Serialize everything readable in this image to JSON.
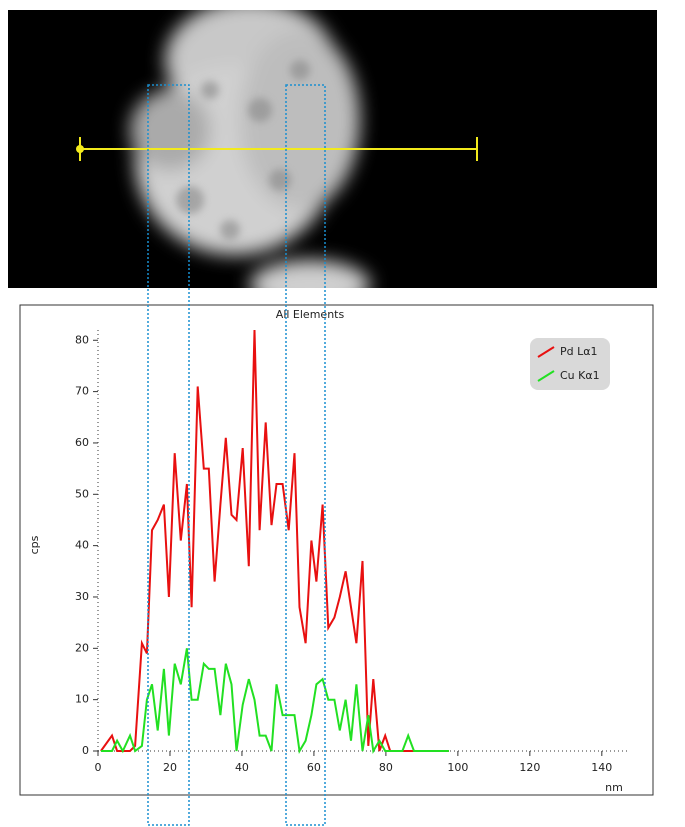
{
  "chart_data": {
    "type": "line",
    "title": "All Elements",
    "x_label": "nm",
    "y_label": "cps",
    "x": [
      0.8,
      3.9,
      5.3,
      6.9,
      8.9,
      10.3,
      12.2,
      13.6,
      15,
      16.6,
      18.3,
      19.7,
      21.3,
      23,
      24.7,
      26,
      27.7,
      29.4,
      30.8,
      32.4,
      34,
      35.5,
      37.1,
      38.5,
      40.2,
      41.9,
      43.5,
      44.9,
      46.6,
      48.2,
      49.6,
      51.3,
      53,
      54.6,
      56,
      57.7,
      59.3,
      60.7,
      62.4,
      64,
      65.7,
      67.2,
      68.8,
      70.3,
      71.8,
      73.5,
      75.1,
      76.5,
      78.2,
      79.8,
      81.2,
      83,
      84.6,
      86.2,
      87.8,
      89.4,
      91,
      93,
      95,
      97.5
    ],
    "series": [
      {
        "name": "Pd Lα1",
        "color": "#e81010",
        "values": [
          0,
          3,
          0,
          0,
          0,
          1,
          21,
          19,
          43,
          45,
          48,
          30,
          58,
          41,
          52,
          28,
          71,
          55,
          55,
          33,
          48,
          61,
          46,
          45,
          59,
          36,
          82,
          43,
          64,
          44,
          52,
          52,
          43,
          58,
          28,
          21,
          41,
          33,
          48,
          24,
          26,
          30,
          35,
          28,
          21,
          37,
          1,
          14,
          0,
          3,
          0,
          0,
          0,
          0,
          0,
          0,
          0,
          0,
          0,
          0
        ]
      },
      {
        "name": "Cu Kα1",
        "color": "#22e022",
        "values": [
          0,
          0,
          2,
          0,
          3,
          0,
          1,
          10,
          13,
          4,
          16,
          3,
          17,
          13,
          20,
          10,
          10,
          17,
          16,
          16,
          7,
          17,
          13,
          0,
          9,
          14,
          10,
          3,
          3,
          0,
          13,
          7,
          7,
          7,
          0,
          2,
          7,
          13,
          14,
          10,
          10,
          4,
          10,
          2,
          13,
          0,
          7,
          0,
          2,
          0,
          0,
          0,
          0,
          3,
          0,
          0,
          0,
          0,
          0,
          0
        ]
      }
    ],
    "xlim": [
      0,
      147
    ],
    "xticks": [
      0,
      20,
      40,
      60,
      80,
      100,
      120,
      140
    ],
    "ylim": [
      0,
      82
    ],
    "yticks": [
      0,
      10,
      20,
      30,
      40,
      50,
      60,
      70,
      80
    ],
    "legend": "upper right"
  }
}
